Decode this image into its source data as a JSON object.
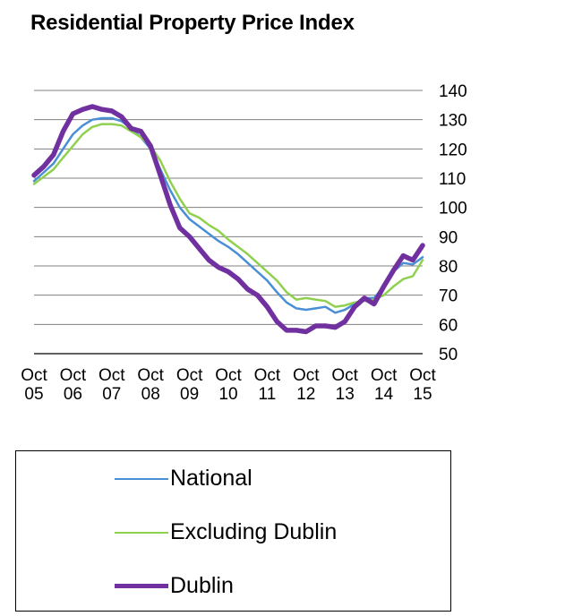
{
  "chart_data": {
    "type": "line",
    "title": "Residential Property Price Index",
    "xlabel": "",
    "ylabel": "",
    "ylim": [
      50,
      140
    ],
    "yticks": [
      50,
      60,
      70,
      80,
      90,
      100,
      110,
      120,
      130,
      140
    ],
    "y_axis_side": "right",
    "grid": true,
    "x_tick_labels": [
      {
        "top": "Oct",
        "bottom": "05"
      },
      {
        "top": "Oct",
        "bottom": "06"
      },
      {
        "top": "Oct",
        "bottom": "07"
      },
      {
        "top": "Oct",
        "bottom": "08"
      },
      {
        "top": "Oct",
        "bottom": "09"
      },
      {
        "top": "Oct",
        "bottom": "10"
      },
      {
        "top": "Oct",
        "bottom": "11"
      },
      {
        "top": "Oct",
        "bottom": "12"
      },
      {
        "top": "Oct",
        "bottom": "13"
      },
      {
        "top": "Oct",
        "bottom": "14"
      },
      {
        "top": "Oct",
        "bottom": "15"
      }
    ],
    "x_unit": "years since Oct 2005",
    "xlim": [
      0,
      10
    ],
    "legend_position": "bottom",
    "series": [
      {
        "name": "National",
        "color": "#4a8fd6",
        "points": [
          [
            0,
            109
          ],
          [
            0.25,
            112
          ],
          [
            0.5,
            115
          ],
          [
            0.75,
            120
          ],
          [
            1,
            125
          ],
          [
            1.25,
            128
          ],
          [
            1.5,
            130
          ],
          [
            1.75,
            130.5
          ],
          [
            2,
            130.5
          ],
          [
            2.25,
            129.5
          ],
          [
            2.5,
            127
          ],
          [
            2.75,
            124
          ],
          [
            3,
            120
          ],
          [
            3.25,
            113
          ],
          [
            3.5,
            106
          ],
          [
            3.75,
            100
          ],
          [
            4,
            96
          ],
          [
            4.25,
            93.5
          ],
          [
            4.5,
            91
          ],
          [
            4.75,
            88.5
          ],
          [
            5,
            86.5
          ],
          [
            5.25,
            84
          ],
          [
            5.5,
            81
          ],
          [
            5.75,
            78
          ],
          [
            6,
            75
          ],
          [
            6.25,
            71
          ],
          [
            6.5,
            67.5
          ],
          [
            6.75,
            65.5
          ],
          [
            7,
            65
          ],
          [
            7.25,
            65.5
          ],
          [
            7.5,
            66
          ],
          [
            7.75,
            64
          ],
          [
            8,
            65
          ],
          [
            8.25,
            67
          ],
          [
            8.5,
            69
          ],
          [
            8.75,
            69
          ],
          [
            9,
            73
          ],
          [
            9.25,
            78
          ],
          [
            9.5,
            81
          ],
          [
            9.75,
            80.5
          ],
          [
            10,
            83
          ]
        ]
      },
      {
        "name": "Excluding Dublin",
        "color": "#8fd14f",
        "points": [
          [
            0,
            108
          ],
          [
            0.25,
            110.5
          ],
          [
            0.5,
            113
          ],
          [
            0.75,
            117
          ],
          [
            1,
            121
          ],
          [
            1.25,
            125
          ],
          [
            1.5,
            127.5
          ],
          [
            1.75,
            128.5
          ],
          [
            2,
            128.5
          ],
          [
            2.25,
            128
          ],
          [
            2.5,
            126
          ],
          [
            2.75,
            124
          ],
          [
            3,
            121
          ],
          [
            3.25,
            116
          ],
          [
            3.5,
            109
          ],
          [
            3.75,
            103
          ],
          [
            4,
            98
          ],
          [
            4.25,
            96.5
          ],
          [
            4.5,
            94
          ],
          [
            4.75,
            92
          ],
          [
            5,
            89
          ],
          [
            5.25,
            86.5
          ],
          [
            5.5,
            84
          ],
          [
            5.75,
            81
          ],
          [
            6,
            78
          ],
          [
            6.25,
            75
          ],
          [
            6.5,
            71
          ],
          [
            6.75,
            68.5
          ],
          [
            7,
            69
          ],
          [
            7.25,
            68.5
          ],
          [
            7.5,
            68
          ],
          [
            7.75,
            66
          ],
          [
            8,
            66.5
          ],
          [
            8.25,
            67.5
          ],
          [
            8.5,
            68
          ],
          [
            8.75,
            68.5
          ],
          [
            9,
            70
          ],
          [
            9.25,
            73
          ],
          [
            9.5,
            75.5
          ],
          [
            9.75,
            76.5
          ],
          [
            10,
            82
          ]
        ]
      },
      {
        "name": "Dublin",
        "color": "#7030a0",
        "points": [
          [
            0,
            111
          ],
          [
            0.25,
            114
          ],
          [
            0.5,
            118
          ],
          [
            0.75,
            126
          ],
          [
            1,
            132
          ],
          [
            1.25,
            133.5
          ],
          [
            1.5,
            134.5
          ],
          [
            1.75,
            133.5
          ],
          [
            2,
            133
          ],
          [
            2.25,
            131
          ],
          [
            2.5,
            127
          ],
          [
            2.75,
            126
          ],
          [
            3,
            121
          ],
          [
            3.25,
            111
          ],
          [
            3.5,
            101
          ],
          [
            3.75,
            93
          ],
          [
            4,
            90
          ],
          [
            4.25,
            86
          ],
          [
            4.5,
            82
          ],
          [
            4.75,
            79.5
          ],
          [
            5,
            78
          ],
          [
            5.25,
            75.5
          ],
          [
            5.5,
            72
          ],
          [
            5.75,
            70
          ],
          [
            6,
            66
          ],
          [
            6.25,
            61
          ],
          [
            6.5,
            58
          ],
          [
            6.75,
            58
          ],
          [
            7,
            57.5
          ],
          [
            7.25,
            59.5
          ],
          [
            7.5,
            59.5
          ],
          [
            7.75,
            59
          ],
          [
            8,
            61
          ],
          [
            8.25,
            66
          ],
          [
            8.5,
            69
          ],
          [
            8.75,
            67
          ],
          [
            9,
            73
          ],
          [
            9.25,
            78.5
          ],
          [
            9.5,
            83.5
          ],
          [
            9.75,
            82
          ],
          [
            10,
            87
          ]
        ]
      }
    ]
  }
}
